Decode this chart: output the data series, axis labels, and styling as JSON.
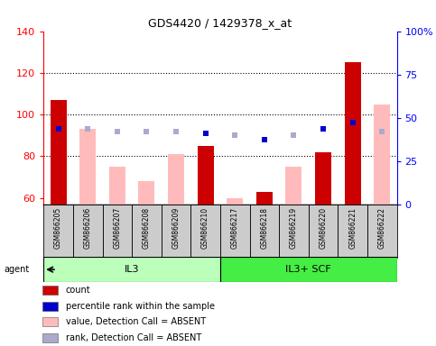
{
  "title": "GDS4420 / 1429378_x_at",
  "samples": [
    "GSM866205",
    "GSM866206",
    "GSM866207",
    "GSM866208",
    "GSM866209",
    "GSM866210",
    "GSM866217",
    "GSM866218",
    "GSM866219",
    "GSM866220",
    "GSM866221",
    "GSM866222"
  ],
  "count_values": [
    107,
    null,
    null,
    null,
    null,
    85,
    null,
    63,
    null,
    82,
    125,
    null
  ],
  "count_absent_values": [
    null,
    93,
    75,
    68,
    81,
    null,
    60,
    null,
    75,
    null,
    null,
    105
  ],
  "rank_present_values": [
    93,
    null,
    null,
    null,
    null,
    91,
    null,
    88,
    null,
    93,
    96,
    null
  ],
  "rank_absent_values": [
    null,
    93,
    92,
    92,
    92,
    null,
    90,
    null,
    90,
    null,
    null,
    92
  ],
  "ylim_left": [
    57,
    140
  ],
  "ylim_right": [
    0,
    100
  ],
  "yticks_left": [
    60,
    80,
    100,
    120,
    140
  ],
  "ytick_labels_left": [
    "60",
    "80",
    "100",
    "120",
    "140"
  ],
  "yticks_right": [
    0,
    25,
    50,
    75,
    100
  ],
  "ytick_labels_right": [
    "0",
    "25",
    "50",
    "75",
    "100%"
  ],
  "color_count_present": "#cc0000",
  "color_count_absent": "#ffbbbb",
  "color_rank_present": "#0000cc",
  "color_rank_absent": "#aaaacc",
  "bar_width": 0.55,
  "grid_lines": [
    80,
    100,
    120
  ],
  "il3_color": "#bbffbb",
  "scf_color": "#44ee44",
  "il3_indices": [
    0,
    1,
    2,
    3,
    4,
    5
  ],
  "scf_indices": [
    6,
    7,
    8,
    9,
    10,
    11
  ],
  "legend_items": [
    {
      "label": "count",
      "color": "#cc0000"
    },
    {
      "label": "percentile rank within the sample",
      "color": "#0000cc"
    },
    {
      "label": "value, Detection Call = ABSENT",
      "color": "#ffbbbb"
    },
    {
      "label": "rank, Detection Call = ABSENT",
      "color": "#aaaacc"
    }
  ]
}
